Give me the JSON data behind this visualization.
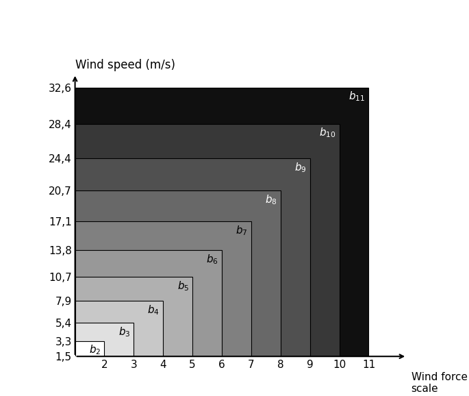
{
  "bars": [
    {
      "label": "b_2",
      "x_end": 2,
      "y_top": 3.3,
      "color": "#ffffff",
      "text_color": "black"
    },
    {
      "label": "b_3",
      "x_end": 3,
      "y_top": 5.4,
      "color": "#e0e0e0",
      "text_color": "black"
    },
    {
      "label": "b_4",
      "x_end": 4,
      "y_top": 7.9,
      "color": "#c8c8c8",
      "text_color": "black"
    },
    {
      "label": "b_5",
      "x_end": 5,
      "y_top": 10.7,
      "color": "#b0b0b0",
      "text_color": "black"
    },
    {
      "label": "b_6",
      "x_end": 6,
      "y_top": 13.8,
      "color": "#989898",
      "text_color": "black"
    },
    {
      "label": "b_7",
      "x_end": 7,
      "y_top": 17.1,
      "color": "#808080",
      "text_color": "black"
    },
    {
      "label": "b_8",
      "x_end": 8,
      "y_top": 20.7,
      "color": "#686868",
      "text_color": "white"
    },
    {
      "label": "b_9",
      "x_end": 9,
      "y_top": 24.4,
      "color": "#505050",
      "text_color": "white"
    },
    {
      "label": "b_10",
      "x_end": 10,
      "y_top": 28.4,
      "color": "#383838",
      "text_color": "white"
    },
    {
      "label": "b_11",
      "x_end": 11,
      "y_top": 32.6,
      "color": "#101010",
      "text_color": "white"
    }
  ],
  "x_start": 1,
  "y_bottom": 1.5,
  "yticks": [
    1.5,
    3.3,
    5.4,
    7.9,
    10.7,
    13.8,
    17.1,
    20.7,
    24.4,
    28.4,
    32.6
  ],
  "ytick_labels": [
    "1,5",
    "3,3",
    "5,4",
    "7,9",
    "10,7",
    "13,8",
    "17,1",
    "20,7",
    "24,4",
    "28,4",
    "32,6"
  ],
  "xticks": [
    2,
    3,
    4,
    5,
    6,
    7,
    8,
    9,
    10,
    11
  ],
  "xlabel": "Wind force\nscale",
  "ylabel": "Wind speed (m/s)",
  "xlim": [
    1,
    12.5
  ],
  "ylim": [
    1.5,
    34.5
  ],
  "arrow_xlim": 12.3,
  "arrow_ylim": 34.2,
  "bg_color": "#ffffff"
}
